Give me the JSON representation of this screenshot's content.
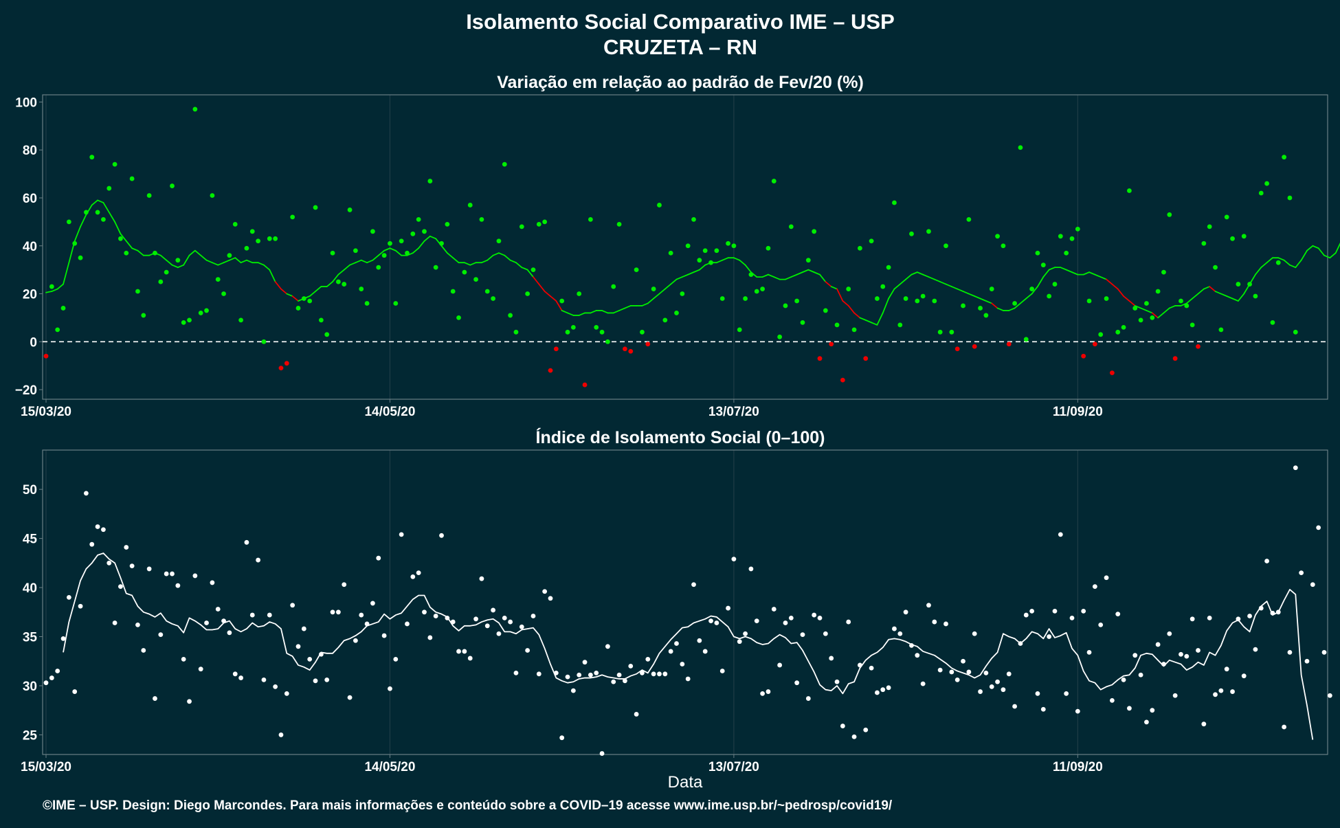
{
  "title_line1": "Isolamento Social Comparativo IME – USP",
  "title_line2": "CRUZETA – RN",
  "xlabel": "Data",
  "footer": "©IME – USP. Design: Diego Marcondes. Para mais informações e conteúdo sobre a COVID–19 acesse www.ime.usp.br/~pedrosp/covid19/",
  "colors": {
    "background": "#022833",
    "panel_border": "#6b7f86",
    "grid": "#1f3d46",
    "positive": "#00ee00",
    "negative": "#ee0000",
    "index": "#ffffff"
  },
  "chart_data": [
    {
      "type": "scatter",
      "title": "Variação em relação ao padrão de Fev/20 (%)",
      "x_start": "2020-03-15",
      "x_end": "2020-10-24",
      "xticks": [
        "15/03/20",
        "14/05/20",
        "13/07/20",
        "11/09/20"
      ],
      "xtick_dates": [
        "2020-03-15",
        "2020-05-14",
        "2020-07-13",
        "2020-09-11"
      ],
      "ylim": [
        -24,
        103
      ],
      "yticks": [
        -20,
        0,
        20,
        40,
        60,
        80,
        100
      ],
      "reference_line": 0,
      "series": [
        {
          "values": [
            -6,
            23,
            5,
            14,
            50,
            41,
            35,
            54,
            77,
            54,
            51,
            64,
            74,
            43,
            37,
            68,
            21,
            11,
            61,
            37,
            25,
            29,
            65,
            34,
            8,
            9,
            97,
            12,
            13,
            61,
            26,
            20,
            36,
            49,
            9,
            39,
            46,
            42,
            0,
            43,
            43,
            -11,
            -9,
            52,
            14,
            18,
            17,
            56,
            9,
            3,
            37,
            25,
            24,
            55,
            38,
            22,
            16,
            46,
            31,
            36,
            41,
            16,
            42,
            37,
            45,
            51,
            46,
            67,
            31,
            41,
            49,
            21,
            10,
            29,
            57,
            26,
            51,
            21,
            18,
            42,
            74,
            11,
            4,
            48,
            20,
            30,
            49,
            50,
            -12,
            -3,
            17,
            4,
            6,
            20,
            -18,
            51,
            6,
            4,
            0,
            23,
            49,
            -3,
            -4,
            30,
            4,
            -1,
            22,
            57,
            9,
            37,
            12,
            20,
            40,
            51,
            34,
            38,
            33,
            38,
            18,
            41,
            40,
            5,
            18,
            28,
            21,
            22,
            39,
            67,
            2,
            15,
            48,
            17,
            8,
            34,
            46,
            -7,
            13,
            -1,
            7,
            -16,
            22,
            5,
            39,
            -7,
            42,
            18,
            23,
            31,
            58,
            7,
            18,
            45,
            17,
            19,
            46,
            17,
            4,
            40,
            4,
            -3,
            15,
            51,
            -2,
            14,
            11,
            22,
            44,
            40,
            -1,
            16,
            81,
            1,
            22,
            37,
            32,
            19,
            24,
            44,
            37,
            43,
            47,
            -6,
            17,
            -1,
            3,
            18,
            -13,
            4,
            6,
            63,
            14,
            9,
            16,
            10,
            21,
            29,
            53,
            -7,
            17,
            15,
            7,
            -2,
            41,
            48,
            31,
            5,
            52,
            43,
            24,
            44,
            24,
            19,
            62,
            66,
            8,
            33,
            77,
            60,
            4
          ]
        },
        {
          "values": [
            20.5,
            21,
            22,
            24,
            33,
            42,
            48,
            53,
            57,
            59,
            58,
            54,
            50,
            45,
            42,
            39,
            38,
            36,
            36,
            37,
            36,
            34,
            32,
            31,
            32,
            36,
            38,
            36,
            34,
            33,
            32,
            33,
            34,
            35,
            33,
            34,
            33,
            33,
            32,
            30,
            25,
            22,
            20,
            19,
            17,
            18,
            19,
            21,
            23,
            23,
            25,
            28,
            30,
            32,
            33,
            34,
            33,
            34,
            36,
            38,
            39,
            38,
            36,
            36,
            37,
            39,
            42,
            44,
            43,
            40,
            37,
            35,
            33,
            33,
            32,
            33,
            33,
            34,
            36,
            37,
            36,
            34,
            33,
            31,
            30,
            27,
            24,
            21,
            19,
            17,
            13,
            12,
            11,
            11,
            12,
            12,
            13,
            13,
            12,
            12,
            13,
            14,
            15,
            15,
            15,
            16,
            18,
            20,
            22,
            24,
            26,
            27,
            28,
            29,
            30,
            32,
            33,
            33,
            34,
            35,
            35,
            34,
            32,
            29,
            27,
            27,
            28,
            27,
            26,
            26,
            27,
            28,
            29,
            30,
            29,
            28,
            25,
            23,
            22,
            17,
            15,
            12,
            10,
            9,
            8,
            7,
            12,
            18,
            22,
            24,
            26,
            28,
            29,
            28,
            27,
            26,
            25,
            24,
            23,
            22,
            21,
            20,
            19,
            18,
            17,
            16,
            14,
            13,
            13,
            14,
            16,
            18,
            20,
            23,
            27,
            30,
            31,
            31,
            30,
            29,
            28,
            28,
            29,
            28,
            27,
            26,
            24,
            22,
            19,
            17,
            15,
            14,
            13,
            12,
            10,
            12,
            14,
            15,
            15,
            16,
            18,
            20,
            22,
            23,
            21,
            20,
            19,
            18,
            17,
            20,
            24,
            28,
            31,
            33,
            35,
            35,
            34,
            32,
            31,
            34,
            38,
            40,
            39,
            36,
            35,
            37,
            42,
            46,
            44
          ]
        }
      ]
    },
    {
      "type": "scatter",
      "title": "Índice de Isolamento Social (0–100)",
      "x_start": "2020-03-15",
      "x_end": "2020-10-24",
      "xticks": [
        "15/03/20",
        "14/05/20",
        "13/07/20",
        "11/09/20"
      ],
      "xtick_dates": [
        "2020-03-15",
        "2020-05-14",
        "2020-07-13",
        "2020-09-11"
      ],
      "ylim": [
        23,
        54
      ],
      "yticks": [
        25,
        30,
        35,
        40,
        45,
        50
      ],
      "series": [
        {
          "values": [
            30.3,
            30.8,
            31.5,
            34.8,
            39,
            29.4,
            38.1,
            49.6,
            44.4,
            46.2,
            45.9,
            42.5,
            36.4,
            40.1,
            44.1,
            42.2,
            36.2,
            33.6,
            41.9,
            28.7,
            35.2,
            41.4,
            41.4,
            40.2,
            32.7,
            28.4,
            41.2,
            31.7,
            36.4,
            40.5,
            37.8,
            36.6,
            35.4,
            31.2,
            30.8,
            44.6,
            37.2,
            42.8,
            30.6,
            37.2,
            29.9,
            25,
            29.2,
            38.2,
            34,
            35.8,
            32.7,
            30.5,
            33.2,
            30.6,
            37.5,
            37.5,
            40.3,
            28.8,
            34.6,
            37.2,
            36.3,
            38.4,
            43,
            35.1,
            29.7,
            32.7,
            45.4,
            36.3,
            41.1,
            41.5,
            37.5,
            34.9,
            37.1,
            45.3,
            36.9,
            36.5,
            33.5,
            33.5,
            32.8,
            36.8,
            40.9,
            36.1,
            37.7,
            35.3,
            36.9,
            36.5,
            31.3,
            36,
            33.6,
            37.1,
            31.2,
            39.6,
            38.9,
            31.3,
            24.7,
            30.9,
            29.5,
            31.1,
            32.4,
            31.1,
            31.3,
            23.1,
            34,
            30.4,
            31.1,
            30.5,
            32,
            27.1,
            31.3,
            32.7,
            31.2,
            31.2,
            31.2,
            33.5,
            34.3,
            32.2,
            30.7,
            40.3,
            34.6,
            33.5,
            36.6,
            36.4,
            31.5,
            37.9,
            42.9,
            34.5,
            35.3,
            41.9,
            36.6,
            29.2,
            29.4,
            37.8,
            32.1,
            36.4,
            36.9,
            30.3,
            35.2,
            28.7,
            37.2,
            36.9,
            35.3,
            32.8,
            30.4,
            25.9,
            36.5,
            24.8,
            32.1,
            25.5,
            31.8,
            29.3,
            29.6,
            29.8,
            35.8,
            35.3,
            37.5,
            34.1,
            33.1,
            30.2,
            38.2,
            36.5,
            31.6,
            36.3,
            31.4,
            30.6,
            32.5,
            31.4,
            35.3,
            29.4,
            31.3,
            29.9,
            30.4,
            29.6,
            31.2,
            27.9,
            34.3,
            37.2,
            37.6,
            29.2,
            27.6,
            35,
            37.6,
            45.4,
            29.2,
            36.9,
            27.4,
            37.6,
            33.4,
            40.1,
            36.2,
            41,
            28.5,
            37.3,
            30.6,
            27.7,
            33.1,
            31.1,
            26.3,
            27.5,
            34.2,
            32.2,
            35.3,
            29,
            33.2,
            33,
            36.8,
            33.6,
            26.1,
            36.9,
            29.1,
            29.5,
            31.7,
            29.4,
            36.8,
            31,
            37.1,
            33.7,
            37.9,
            42.7,
            37.4,
            37.5,
            25.8,
            33.4,
            52.2,
            41.5,
            32.5,
            40.3,
            46.1,
            33.4,
            29
          ]
        },
        {
          "values": [
            null,
            null,
            null,
            33.4,
            36.5,
            38.6,
            40.7,
            41.9,
            42.5,
            43.3,
            43.5,
            42.9,
            42.5,
            41,
            39.4,
            39.2,
            38.1,
            37.5,
            37.3,
            37,
            37.4,
            36.6,
            36.3,
            36.1,
            35.4,
            36.9,
            36.6,
            36.2,
            35.7,
            35.7,
            35.8,
            36.4,
            36.6,
            35.8,
            35.5,
            35.8,
            36.4,
            36,
            36.1,
            36.5,
            36.3,
            35.8,
            33.3,
            33,
            32.1,
            31.9,
            31.6,
            32.4,
            33.4,
            33.3,
            33.3,
            33.9,
            34.6,
            34.8,
            35.1,
            35.5,
            36.1,
            36.3,
            36.5,
            37.3,
            36.8,
            37.2,
            37.4,
            38.1,
            38.8,
            39.2,
            39.2,
            38,
            37.5,
            37.3,
            37,
            36.1,
            35.6,
            36.1,
            36.1,
            36.2,
            36.5,
            36.7,
            36.8,
            36.4,
            35.5,
            35.5,
            35.3,
            35.7,
            35.8,
            35.9,
            35.2,
            33.8,
            32.2,
            30.8,
            30.5,
            30.3,
            30.4,
            30.7,
            30.8,
            30.8,
            30.9,
            31.1,
            30.9,
            30.8,
            30.7,
            30.7,
            31,
            31.2,
            31.6,
            31.3,
            32.2,
            33.3,
            34,
            34.7,
            35.3,
            35.9,
            36,
            36.4,
            36.6,
            36.8,
            37.1,
            37,
            36.5,
            36,
            35,
            34.8,
            35,
            34.8,
            34.4,
            34.2,
            34.3,
            34.8,
            35.2,
            34.9,
            34.3,
            34.4,
            33.6,
            32.5,
            31.4,
            30.1,
            29.6,
            29.5,
            30,
            29.2,
            30.2,
            30.4,
            31.8,
            32.6,
            33.1,
            33.4,
            33.9,
            34.7,
            34.8,
            34.7,
            34.5,
            34.2,
            34,
            33.5,
            33.3,
            33.1,
            32.7,
            32.3,
            31.8,
            31.5,
            31.3,
            31.1,
            30.8,
            31.1,
            32,
            32.8,
            33.4,
            35.3,
            35,
            34.8,
            34.3,
            34.8,
            35.5,
            35.3,
            34.8,
            35.8,
            34.9,
            35.1,
            35.4,
            33.8,
            33.1,
            31.5,
            30.5,
            30.3,
            29.6,
            29.9,
            30.1,
            30.6,
            31,
            31.1,
            31.8,
            33.1,
            33.3,
            33.2,
            32.6,
            32,
            32.6,
            32.4,
            32.2,
            31.6,
            31.9,
            32.4,
            32.1,
            33.4,
            33.1,
            34.1,
            35.6,
            36.4,
            36.7,
            36,
            35.5,
            37.2,
            38.1,
            38.6,
            37.2,
            37.5,
            38.7,
            39.8,
            39.3,
            31.1,
            28,
            24.5
          ]
        }
      ]
    }
  ]
}
